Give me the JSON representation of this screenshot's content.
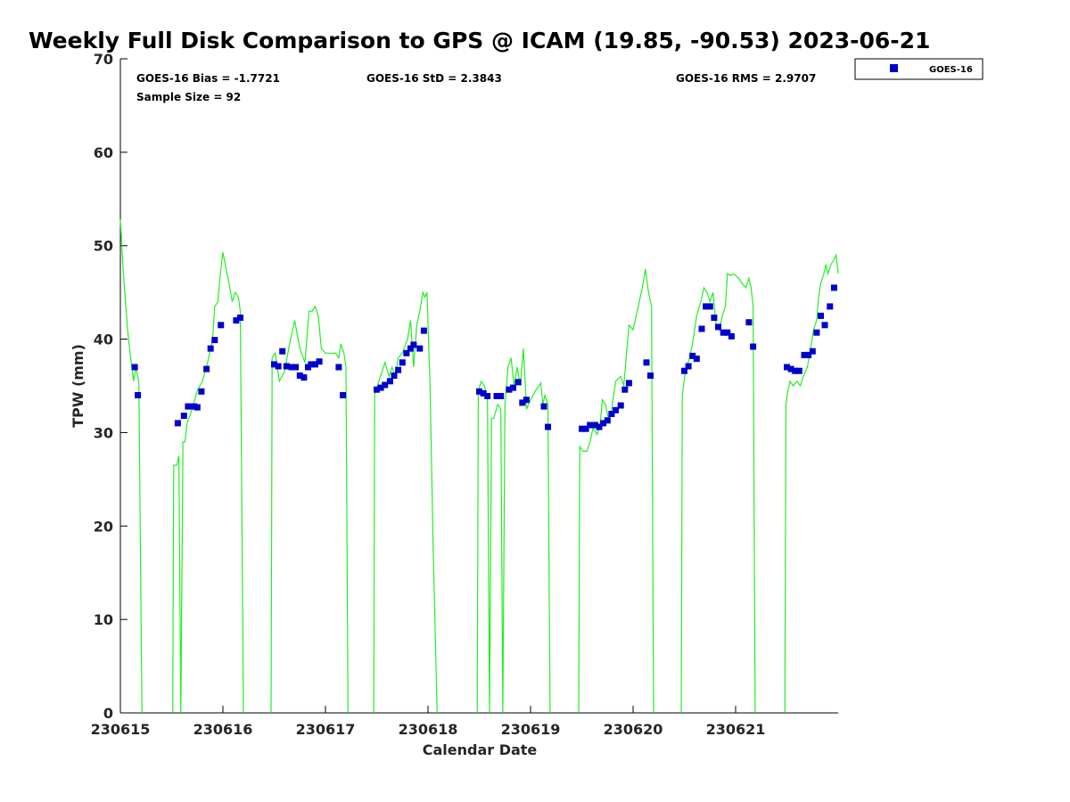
{
  "chart_data": {
    "type": "scatter",
    "title": "Weekly Full Disk Comparison to GPS @ ICAM (19.85, -90.53) 2023-06-21",
    "xlabel": "Calendar Date",
    "ylabel": "TPW (mm)",
    "xlim": [
      0,
      7
    ],
    "ylim": [
      0,
      70
    ],
    "x_ticks": [
      {
        "value": 0,
        "label": "230615"
      },
      {
        "value": 1,
        "label": "230616"
      },
      {
        "value": 2,
        "label": "230617"
      },
      {
        "value": 3,
        "label": "230618"
      },
      {
        "value": 4,
        "label": "230619"
      },
      {
        "value": 5,
        "label": "230620"
      },
      {
        "value": 6,
        "label": "230621"
      }
    ],
    "y_ticks": [
      0,
      10,
      20,
      30,
      40,
      50,
      60,
      70
    ],
    "stats": {
      "bias": "GOES-16 Bias = -1.7721",
      "std": "GOES-16 StD = 2.3843",
      "rms": "GOES-16 RMS = 2.9707",
      "sample": "Sample Size = 92"
    },
    "legend": {
      "label": "GOES-16",
      "position": "top-right outside"
    },
    "colors": {
      "goes": "#0000cc",
      "gps": "#22ee22"
    },
    "series": [
      {
        "name": "GOES-16",
        "marker": "square",
        "points": [
          [
            0.14,
            37.0
          ],
          [
            0.17,
            34.0
          ],
          [
            0.56,
            31.0
          ],
          [
            0.62,
            31.8
          ],
          [
            0.66,
            32.8
          ],
          [
            0.72,
            32.8
          ],
          [
            0.75,
            32.7
          ],
          [
            0.79,
            34.4
          ],
          [
            0.84,
            36.8
          ],
          [
            0.88,
            39.0
          ],
          [
            0.92,
            39.9
          ],
          [
            0.98,
            41.5
          ],
          [
            1.13,
            42.0
          ],
          [
            1.17,
            42.3
          ],
          [
            1.5,
            37.3
          ],
          [
            1.54,
            37.1
          ],
          [
            1.58,
            38.7
          ],
          [
            1.62,
            37.1
          ],
          [
            1.67,
            37.0
          ],
          [
            1.71,
            37.0
          ],
          [
            1.75,
            36.1
          ],
          [
            1.79,
            35.9
          ],
          [
            1.83,
            37.0
          ],
          [
            1.86,
            37.3
          ],
          [
            1.9,
            37.3
          ],
          [
            1.94,
            37.6
          ],
          [
            2.13,
            37.0
          ],
          [
            2.17,
            34.0
          ],
          [
            2.5,
            34.6
          ],
          [
            2.54,
            34.8
          ],
          [
            2.58,
            35.1
          ],
          [
            2.63,
            35.5
          ],
          [
            2.67,
            36.1
          ],
          [
            2.71,
            36.7
          ],
          [
            2.75,
            37.5
          ],
          [
            2.79,
            38.5
          ],
          [
            2.83,
            39.0
          ],
          [
            2.86,
            39.4
          ],
          [
            2.92,
            39.0
          ],
          [
            2.96,
            40.9
          ],
          [
            3.5,
            34.4
          ],
          [
            3.54,
            34.2
          ],
          [
            3.58,
            33.9
          ],
          [
            3.67,
            33.9
          ],
          [
            3.71,
            33.9
          ],
          [
            3.79,
            34.6
          ],
          [
            3.83,
            34.8
          ],
          [
            3.88,
            35.4
          ],
          [
            3.92,
            33.2
          ],
          [
            3.96,
            33.5
          ],
          [
            4.13,
            32.8
          ],
          [
            4.17,
            30.6
          ],
          [
            4.5,
            30.4
          ],
          [
            4.54,
            30.4
          ],
          [
            4.58,
            30.8
          ],
          [
            4.63,
            30.8
          ],
          [
            4.67,
            30.6
          ],
          [
            4.71,
            31.0
          ],
          [
            4.75,
            31.3
          ],
          [
            4.79,
            32.0
          ],
          [
            4.83,
            32.4
          ],
          [
            4.88,
            32.9
          ],
          [
            4.92,
            34.6
          ],
          [
            4.96,
            35.3
          ],
          [
            5.13,
            37.5
          ],
          [
            5.17,
            36.1
          ],
          [
            5.5,
            36.6
          ],
          [
            5.54,
            37.1
          ],
          [
            5.58,
            38.2
          ],
          [
            5.62,
            37.9
          ],
          [
            5.67,
            41.1
          ],
          [
            5.71,
            43.5
          ],
          [
            5.75,
            43.5
          ],
          [
            5.79,
            42.3
          ],
          [
            5.83,
            41.3
          ],
          [
            5.88,
            40.7
          ],
          [
            5.92,
            40.7
          ],
          [
            5.96,
            40.3
          ],
          [
            6.13,
            41.8
          ],
          [
            6.17,
            39.2
          ],
          [
            6.5,
            37.0
          ],
          [
            6.54,
            36.8
          ],
          [
            6.58,
            36.6
          ],
          [
            6.62,
            36.6
          ],
          [
            6.67,
            38.3
          ],
          [
            6.71,
            38.3
          ],
          [
            6.75,
            38.7
          ],
          [
            6.79,
            40.7
          ],
          [
            6.83,
            42.5
          ],
          [
            6.87,
            41.5
          ],
          [
            6.92,
            43.5
          ],
          [
            6.96,
            45.5
          ]
        ]
      },
      {
        "name": "GPS",
        "marker": "line",
        "segments": [
          [
            [
              0.0,
              52.8
            ],
            [
              0.03,
              47.0
            ],
            [
              0.07,
              41.0
            ],
            [
              0.1,
              38.0
            ],
            [
              0.13,
              35.5
            ],
            [
              0.15,
              37.0
            ],
            [
              0.18,
              35.5
            ],
            [
              0.21,
              0
            ]
          ],
          [
            [
              0.51,
              0
            ],
            [
              0.52,
              26.5
            ],
            [
              0.55,
              26.5
            ],
            [
              0.57,
              27.5
            ],
            [
              0.59,
              0
            ],
            [
              0.61,
              29.0
            ],
            [
              0.63,
              29.0
            ],
            [
              0.65,
              31.0
            ],
            [
              0.7,
              32.5
            ],
            [
              0.75,
              34.5
            ],
            [
              0.8,
              35.5
            ],
            [
              0.85,
              37.5
            ],
            [
              0.9,
              40.0
            ],
            [
              0.92,
              43.5
            ],
            [
              0.95,
              44.0
            ],
            [
              0.98,
              47.5
            ],
            [
              1.0,
              49.3
            ],
            [
              1.03,
              47.5
            ],
            [
              1.06,
              46.0
            ],
            [
              1.09,
              44.0
            ],
            [
              1.12,
              45.0
            ],
            [
              1.15,
              44.5
            ],
            [
              1.17,
              43.0
            ],
            [
              1.2,
              0
            ]
          ],
          [
            [
              1.47,
              0
            ],
            [
              1.48,
              38.0
            ],
            [
              1.51,
              38.5
            ],
            [
              1.55,
              35.5
            ],
            [
              1.6,
              36.5
            ],
            [
              1.65,
              39.5
            ],
            [
              1.7,
              42.0
            ],
            [
              1.75,
              39.0
            ],
            [
              1.8,
              37.5
            ],
            [
              1.84,
              43.0
            ],
            [
              1.87,
              43.0
            ],
            [
              1.9,
              43.5
            ],
            [
              1.93,
              42.5
            ],
            [
              1.96,
              39.0
            ],
            [
              2.0,
              38.5
            ],
            [
              2.05,
              38.5
            ],
            [
              2.1,
              38.5
            ],
            [
              2.13,
              38.0
            ],
            [
              2.15,
              39.5
            ],
            [
              2.18,
              38.5
            ],
            [
              2.2,
              37.0
            ],
            [
              2.22,
              0
            ]
          ],
          [
            [
              2.47,
              0
            ],
            [
              2.48,
              34.0
            ],
            [
              2.52,
              35.5
            ],
            [
              2.55,
              36.5
            ],
            [
              2.58,
              37.5
            ],
            [
              2.62,
              36.0
            ],
            [
              2.65,
              37.0
            ],
            [
              2.68,
              36.0
            ],
            [
              2.71,
              38.0
            ],
            [
              2.75,
              38.5
            ],
            [
              2.8,
              40.0
            ],
            [
              2.83,
              42.0
            ],
            [
              2.86,
              37.0
            ],
            [
              2.89,
              41.5
            ],
            [
              2.92,
              43.0
            ],
            [
              2.95,
              45.0
            ],
            [
              2.97,
              44.5
            ],
            [
              2.99,
              45.0
            ],
            [
              3.02,
              35.0
            ],
            [
              3.05,
              18.0
            ],
            [
              3.09,
              0
            ]
          ],
          [
            [
              3.48,
              0
            ],
            [
              3.49,
              34.5
            ],
            [
              3.52,
              35.5
            ],
            [
              3.55,
              35.0
            ],
            [
              3.58,
              33.5
            ],
            [
              3.6,
              0
            ],
            [
              3.62,
              31.5
            ],
            [
              3.64,
              31.5
            ],
            [
              3.68,
              33.0
            ],
            [
              3.71,
              32.5
            ],
            [
              3.73,
              0
            ],
            [
              3.75,
              33.0
            ],
            [
              3.78,
              37.0
            ],
            [
              3.81,
              38.0
            ],
            [
              3.84,
              35.0
            ],
            [
              3.87,
              37.0
            ],
            [
              3.9,
              35.0
            ],
            [
              3.93,
              39.0
            ],
            [
              3.96,
              32.5
            ],
            [
              4.0,
              33.5
            ],
            [
              4.05,
              34.5
            ],
            [
              4.1,
              35.3
            ],
            [
              4.12,
              33.0
            ],
            [
              4.14,
              34.0
            ],
            [
              4.17,
              33.0
            ],
            [
              4.19,
              0
            ]
          ],
          [
            [
              4.47,
              0
            ],
            [
              4.48,
              28.5
            ],
            [
              4.51,
              28.0
            ],
            [
              4.55,
              28.0
            ],
            [
              4.58,
              29.0
            ],
            [
              4.61,
              30.5
            ],
            [
              4.65,
              29.8
            ],
            [
              4.68,
              31.0
            ],
            [
              4.7,
              33.5
            ],
            [
              4.73,
              33.0
            ],
            [
              4.76,
              31.5
            ],
            [
              4.79,
              32.5
            ],
            [
              4.83,
              35.5
            ],
            [
              4.88,
              36.0
            ],
            [
              4.91,
              35.0
            ],
            [
              4.94,
              39.0
            ],
            [
              4.96,
              41.5
            ],
            [
              5.0,
              41.0
            ],
            [
              5.05,
              43.5
            ],
            [
              5.09,
              45.5
            ],
            [
              5.12,
              47.5
            ],
            [
              5.15,
              45.0
            ],
            [
              5.18,
              43.5
            ],
            [
              5.2,
              0
            ]
          ],
          [
            [
              5.47,
              0
            ],
            [
              5.48,
              34.0
            ],
            [
              5.51,
              36.5
            ],
            [
              5.55,
              38.0
            ],
            [
              5.58,
              39.5
            ],
            [
              5.62,
              42.5
            ],
            [
              5.66,
              44.0
            ],
            [
              5.69,
              45.5
            ],
            [
              5.72,
              45.0
            ],
            [
              5.75,
              44.0
            ],
            [
              5.78,
              45.0
            ],
            [
              5.81,
              41.5
            ],
            [
              5.84,
              41.0
            ],
            [
              5.87,
              42.5
            ],
            [
              5.9,
              43.5
            ],
            [
              5.92,
              47.0
            ],
            [
              5.95,
              46.8
            ],
            [
              5.98,
              47.0
            ],
            [
              6.0,
              46.8
            ],
            [
              6.03,
              46.5
            ],
            [
              6.06,
              46.0
            ],
            [
              6.1,
              45.5
            ],
            [
              6.13,
              46.5
            ],
            [
              6.15,
              45.5
            ],
            [
              6.17,
              43.5
            ],
            [
              6.19,
              0
            ]
          ],
          [
            [
              6.48,
              0
            ],
            [
              6.49,
              33.0
            ],
            [
              6.51,
              34.5
            ],
            [
              6.53,
              35.5
            ],
            [
              6.56,
              35.0
            ],
            [
              6.6,
              35.5
            ],
            [
              6.63,
              35.0
            ],
            [
              6.66,
              36.0
            ],
            [
              6.7,
              37.0
            ],
            [
              6.73,
              39.0
            ],
            [
              6.76,
              41.0
            ],
            [
              6.79,
              42.0
            ],
            [
              6.81,
              44.5
            ],
            [
              6.83,
              46.0
            ],
            [
              6.86,
              47.0
            ],
            [
              6.88,
              48.0
            ],
            [
              6.9,
              47.0
            ],
            [
              6.93,
              48.0
            ],
            [
              6.96,
              48.5
            ],
            [
              6.98,
              49.0
            ],
            [
              7.0,
              47.0
            ]
          ]
        ]
      }
    ]
  }
}
